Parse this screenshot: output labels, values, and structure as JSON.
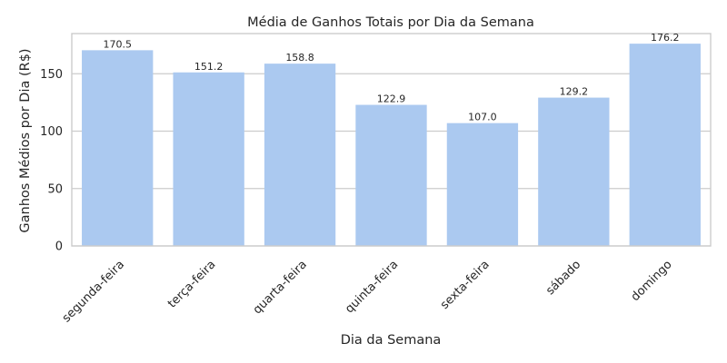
{
  "chart_data": {
    "type": "bar",
    "title": "Média de Ganhos Totais por Dia da Semana",
    "xlabel": "Dia da Semana",
    "ylabel": "Ganhos Médios por Dia (R$)",
    "categories": [
      "segunda-feira",
      "terça-feira",
      "quarta-feira",
      "quinta-feira",
      "sexta-feira",
      "sábado",
      "domingo"
    ],
    "values": [
      170.5,
      151.2,
      158.8,
      122.9,
      107.0,
      129.2,
      176.2
    ],
    "data_labels": [
      "170.5",
      "151.2",
      "158.8",
      "122.9",
      "107.0",
      "129.2",
      "176.2"
    ],
    "yticks": [
      0,
      50,
      100,
      150
    ],
    "ylim": [
      0,
      185
    ],
    "grid": "horizontal",
    "bar_color": "#abc9f0"
  }
}
